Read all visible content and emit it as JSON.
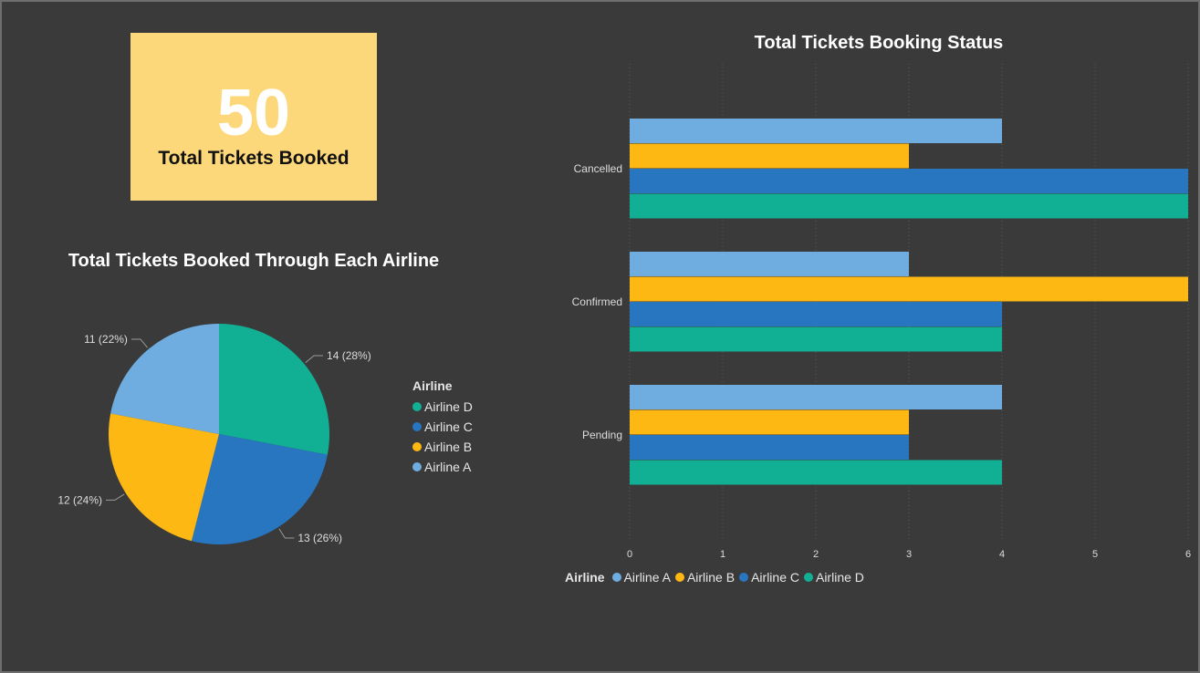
{
  "kpi": {
    "value": "50",
    "label": "Total Tickets Booked"
  },
  "colors": {
    "Airline A": "#6fade0",
    "Airline B": "#fdb813",
    "Airline C": "#2776bf",
    "Airline D": "#11b094",
    "kpi_bg": "#fdd87a",
    "background": "#3a3a3a"
  },
  "chart_data": [
    {
      "type": "pie",
      "title": "Total Tickets Booked Through Each Airline",
      "legend_title": "Airline",
      "legend_position": "right",
      "slices": [
        {
          "name": "Airline D",
          "value": 14,
          "label": "14 (28%)"
        },
        {
          "name": "Airline C",
          "value": 13,
          "label": "13 (26%)"
        },
        {
          "name": "Airline B",
          "value": 12,
          "label": "12 (24%)"
        },
        {
          "name": "Airline A",
          "value": 11,
          "label": "11 (22%)"
        }
      ],
      "legend": [
        "Airline D",
        "Airline C",
        "Airline B",
        "Airline A"
      ]
    },
    {
      "type": "bar",
      "orientation": "horizontal",
      "title": "Total Tickets Booking Status",
      "categories": [
        "Cancelled",
        "Confirmed",
        "Pending"
      ],
      "series": [
        {
          "name": "Airline A",
          "values": [
            4,
            3,
            4
          ]
        },
        {
          "name": "Airline B",
          "values": [
            3,
            6,
            3
          ]
        },
        {
          "name": "Airline C",
          "values": [
            6,
            4,
            3
          ]
        },
        {
          "name": "Airline D",
          "values": [
            6,
            4,
            4
          ]
        }
      ],
      "xlim": [
        0,
        6
      ],
      "xticks": [
        "0",
        "1",
        "2",
        "3",
        "4",
        "5",
        "6"
      ],
      "grid": true,
      "legend_title": "Airline",
      "legend_position": "bottom-left",
      "legend": [
        "Airline A",
        "Airline B",
        "Airline C",
        "Airline D"
      ]
    }
  ]
}
